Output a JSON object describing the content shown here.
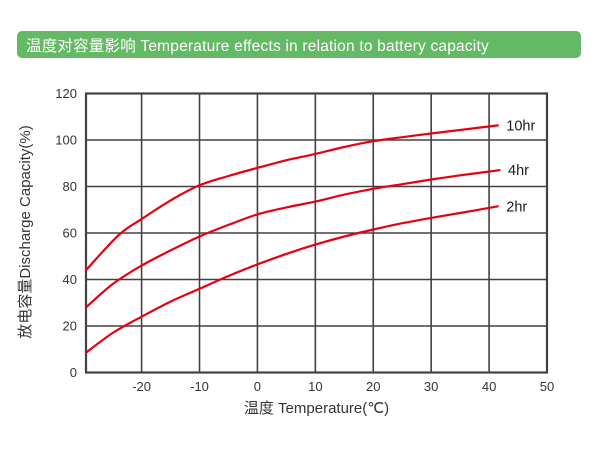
{
  "header": {
    "title": "温度对容量影响 Temperature effects in relation to battery capacity",
    "bg_color": "#64b964",
    "text_color": "#ffffff"
  },
  "chart_data": {
    "type": "line",
    "title": "温度对容量影响 Temperature effects in relation to battery capacity",
    "xlabel": "温度 Temperature(℃)",
    "ylabel": "放电容量Discharge Capacity(%)",
    "xlim": [
      -29.6,
      50
    ],
    "ylim": [
      0,
      120
    ],
    "x_ticks": [
      -20,
      -10,
      0,
      10,
      20,
      30,
      40,
      50
    ],
    "y_ticks": [
      0,
      20,
      40,
      60,
      80,
      100,
      120
    ],
    "grid": true,
    "legend_position": "right-end-of-line",
    "line_color": "#e60012",
    "grid_color": "#474040",
    "tick_color": "#383434",
    "label_color": "#1d1b1b",
    "series": [
      {
        "name": "10hr",
        "points": [
          [
            -29.6,
            44
          ],
          [
            -24,
            59
          ],
          [
            -20,
            66
          ],
          [
            -15,
            74
          ],
          [
            -10,
            80.5
          ],
          [
            -5,
            84.5
          ],
          [
            0,
            88
          ],
          [
            5,
            91.3
          ],
          [
            10,
            94
          ],
          [
            15,
            97
          ],
          [
            20,
            99.5
          ],
          [
            25,
            101.2
          ],
          [
            30,
            102.8
          ],
          [
            35,
            104.3
          ],
          [
            41.5,
            106.3
          ]
        ]
      },
      {
        "name": "4hr",
        "points": [
          [
            -29.6,
            28
          ],
          [
            -25,
            38
          ],
          [
            -20,
            46
          ],
          [
            -15,
            52.5
          ],
          [
            -10,
            58.5
          ],
          [
            -5,
            63.5
          ],
          [
            0,
            68
          ],
          [
            5,
            71
          ],
          [
            10,
            73.5
          ],
          [
            15,
            76.5
          ],
          [
            20,
            79
          ],
          [
            25,
            81
          ],
          [
            30,
            83
          ],
          [
            35,
            84.8
          ],
          [
            41.8,
            87
          ]
        ]
      },
      {
        "name": "2hr",
        "points": [
          [
            -29.6,
            8.5
          ],
          [
            -25,
            17
          ],
          [
            -20,
            24
          ],
          [
            -15,
            30.5
          ],
          [
            -10,
            36
          ],
          [
            -5,
            41.5
          ],
          [
            0,
            46.5
          ],
          [
            5,
            51
          ],
          [
            10,
            55
          ],
          [
            15,
            58.5
          ],
          [
            20,
            61.5
          ],
          [
            25,
            64.2
          ],
          [
            30,
            66.5
          ],
          [
            35,
            68.6
          ],
          [
            41.5,
            71.5
          ]
        ]
      }
    ]
  }
}
